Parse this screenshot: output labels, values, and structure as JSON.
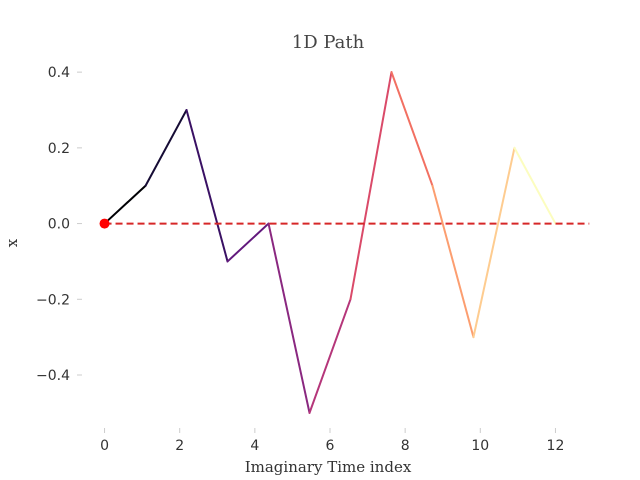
{
  "chart_data": {
    "type": "line",
    "title": "1D Path",
    "xlabel": "Imaginary Time index",
    "ylabel": "x",
    "xlim": [
      -0.6,
      12.6
    ],
    "ylim": [
      -0.54,
      0.44
    ],
    "x_ticks": [
      0,
      2,
      4,
      6,
      8,
      10,
      12
    ],
    "x_tick_labels": [
      "0",
      "2",
      "4",
      "6",
      "8",
      "10",
      "12"
    ],
    "y_ticks": [
      -0.4,
      -0.2,
      0.0,
      0.2,
      0.4
    ],
    "y_tick_labels": [
      "−0.4",
      "−0.2",
      "0.0",
      "0.2",
      "0.4"
    ],
    "grid": false,
    "colormap": "magma",
    "series": [
      {
        "x": [
          0,
          1.091,
          2.182,
          3.273,
          4.364,
          5.455,
          6.545,
          7.636,
          8.727,
          9.818,
          10.909,
          12
        ],
        "y": [
          0.0,
          0.1,
          0.3,
          -0.1,
          0.0,
          -0.5,
          -0.2,
          0.4,
          0.1,
          -0.3,
          0.2,
          0.0
        ]
      }
    ],
    "reference_line": {
      "y": 0.0,
      "color": "#d62728",
      "style": "dashed"
    },
    "start_marker": {
      "x": 0,
      "y": 0.0,
      "color": "#ff0000"
    }
  }
}
